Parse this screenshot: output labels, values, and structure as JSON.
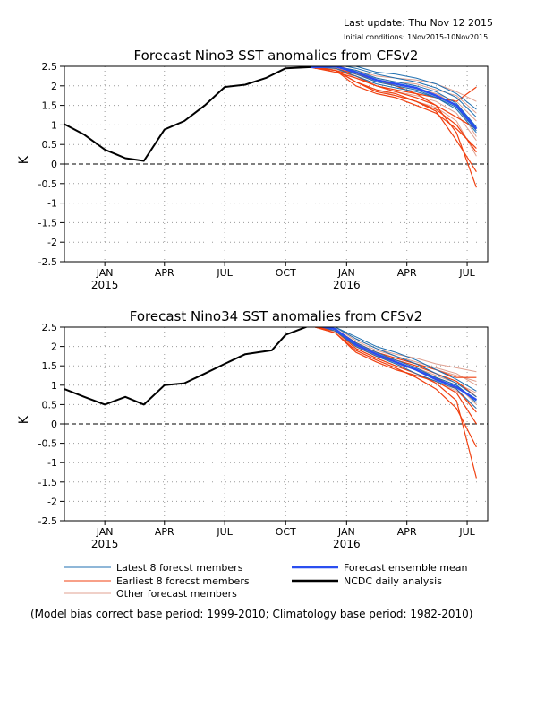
{
  "header": {
    "last_update": "Last update: Thu Nov 12 2015",
    "initial_conditions": "Initial conditions: 1Nov2015-10Nov2015"
  },
  "footnote": "(Model bias correct base period: 1999-2010; Climatology base period: 1982-2010)",
  "legend": {
    "latest": "Latest 8 forecst members",
    "earliest": "Earliest 8 forecst members",
    "other": "Other forecast members",
    "mean": "Forecast ensemble mean",
    "analysis": "NCDC daily analysis"
  },
  "colors": {
    "analysis": "#000000",
    "mean": "#2a4ef0",
    "latest": "#1f6fb0",
    "earliest": "#f04010",
    "other": "#e0a090",
    "zero_line": "#000000"
  },
  "chart_data": [
    {
      "type": "line",
      "title": "Forecast Nino3 SST anomalies from CFSv2",
      "ylabel": "K",
      "ylim": [
        -2.5,
        2.5
      ],
      "yticks": [
        "2.5",
        "2",
        "1.5",
        "1",
        "0.5",
        "0",
        "-0.5",
        "-1",
        "-1.5",
        "-2",
        "-2.5"
      ],
      "ytick_values": [
        2.5,
        2,
        1.5,
        1,
        0.5,
        0,
        -0.5,
        -1,
        -1.5,
        -2,
        -2.5
      ],
      "xlim": [
        "2014-11-01",
        "2016-08-01"
      ],
      "xticks": [
        {
          "date": "2015-01-01",
          "label": "JAN",
          "sub": "2015"
        },
        {
          "date": "2015-04-01",
          "label": "APR",
          "sub": ""
        },
        {
          "date": "2015-07-01",
          "label": "JUL",
          "sub": ""
        },
        {
          "date": "2015-10-01",
          "label": "OCT",
          "sub": ""
        },
        {
          "date": "2016-01-01",
          "label": "JAN",
          "sub": "2016"
        },
        {
          "date": "2016-04-01",
          "label": "APR",
          "sub": ""
        },
        {
          "date": "2016-07-01",
          "label": "JUL",
          "sub": ""
        }
      ],
      "grid": true,
      "analysis": {
        "x": [
          "2014-11-01",
          "2014-12-01",
          "2015-01-01",
          "2015-02-01",
          "2015-03-01",
          "2015-04-01",
          "2015-05-01",
          "2015-06-01",
          "2015-07-01",
          "2015-08-01",
          "2015-09-01",
          "2015-10-01",
          "2015-11-08"
        ],
        "y": [
          1.02,
          0.75,
          0.37,
          0.15,
          0.08,
          0.88,
          1.1,
          1.5,
          1.97,
          2.03,
          2.2,
          2.45,
          2.48
        ]
      },
      "forecast_x": [
        "2015-11-15",
        "2015-12-15",
        "2016-01-15",
        "2016-02-15",
        "2016-03-15",
        "2016-04-15",
        "2016-05-15",
        "2016-06-15",
        "2016-07-15"
      ],
      "mean": [
        2.48,
        2.5,
        2.35,
        2.15,
        2.05,
        1.95,
        1.75,
        1.5,
        0.9
      ],
      "latest": [
        [
          2.48,
          2.55,
          2.45,
          2.3,
          2.2,
          2.1,
          1.95,
          1.7,
          1.2
        ],
        [
          2.48,
          2.5,
          2.4,
          2.2,
          2.1,
          2.0,
          1.85,
          1.55,
          0.95
        ],
        [
          2.48,
          2.52,
          2.3,
          2.1,
          2.0,
          1.9,
          1.7,
          1.4,
          0.8
        ],
        [
          2.48,
          2.45,
          2.25,
          2.05,
          1.95,
          1.85,
          1.7,
          1.45,
          0.85
        ],
        [
          2.48,
          2.55,
          2.5,
          2.35,
          2.3,
          2.2,
          2.05,
          1.8,
          1.4
        ]
      ],
      "earliest": [
        [
          2.45,
          2.4,
          2.25,
          2.0,
          1.9,
          1.8,
          1.7,
          1.6,
          1.97
        ],
        [
          2.45,
          2.4,
          2.1,
          1.9,
          1.8,
          1.6,
          1.4,
          1.0,
          0.3
        ],
        [
          2.45,
          2.35,
          2.2,
          2.0,
          1.85,
          1.7,
          1.5,
          0.8,
          -0.6
        ],
        [
          2.45,
          2.4,
          2.0,
          1.8,
          1.7,
          1.5,
          1.3,
          0.9,
          0.4
        ],
        [
          2.45,
          2.45,
          2.3,
          2.15,
          2.0,
          1.8,
          1.5,
          1.2,
          0.9
        ],
        [
          2.45,
          2.4,
          2.1,
          1.85,
          1.75,
          1.6,
          1.35,
          0.6,
          -0.2
        ]
      ],
      "other": [
        [
          2.48,
          2.5,
          2.3,
          2.1,
          2.0,
          1.9,
          1.8,
          1.6,
          1.1
        ],
        [
          2.48,
          2.45,
          2.2,
          2.0,
          1.85,
          1.75,
          1.6,
          1.3,
          0.6
        ],
        [
          2.48,
          2.5,
          2.4,
          2.25,
          2.2,
          2.15,
          2.05,
          1.85,
          1.6
        ],
        [
          2.48,
          2.4,
          2.1,
          1.9,
          1.75,
          1.6,
          1.45,
          1.1,
          0.2
        ],
        [
          2.48,
          2.55,
          2.35,
          2.2,
          2.1,
          2.05,
          1.9,
          1.75,
          1.3
        ],
        [
          2.48,
          2.45,
          2.3,
          2.15,
          2.05,
          1.95,
          1.8,
          1.5,
          0.7
        ]
      ]
    },
    {
      "type": "line",
      "title": "Forecast Nino34 SST anomalies from CFSv2",
      "ylabel": "K",
      "ylim": [
        -2.5,
        2.5
      ],
      "yticks": [
        "2.5",
        "2",
        "1.5",
        "1",
        "0.5",
        "0",
        "-0.5",
        "-1",
        "-1.5",
        "-2",
        "-2.5"
      ],
      "ytick_values": [
        2.5,
        2,
        1.5,
        1,
        0.5,
        0,
        -0.5,
        -1,
        -1.5,
        -2,
        -2.5
      ],
      "xlim": [
        "2014-11-01",
        "2016-08-01"
      ],
      "xticks": [
        {
          "date": "2015-01-01",
          "label": "JAN",
          "sub": "2015"
        },
        {
          "date": "2015-04-01",
          "label": "APR",
          "sub": ""
        },
        {
          "date": "2015-07-01",
          "label": "JUL",
          "sub": ""
        },
        {
          "date": "2015-10-01",
          "label": "OCT",
          "sub": ""
        },
        {
          "date": "2016-01-01",
          "label": "JAN",
          "sub": "2016"
        },
        {
          "date": "2016-04-01",
          "label": "APR",
          "sub": ""
        },
        {
          "date": "2016-07-01",
          "label": "JUL",
          "sub": ""
        }
      ],
      "grid": true,
      "analysis": {
        "x": [
          "2014-11-01",
          "2014-12-01",
          "2015-01-01",
          "2015-02-01",
          "2015-03-01",
          "2015-04-01",
          "2015-05-01",
          "2015-06-01",
          "2015-07-01",
          "2015-08-01",
          "2015-08-20",
          "2015-09-10",
          "2015-10-01",
          "2015-11-08"
        ],
        "y": [
          0.9,
          0.7,
          0.5,
          0.7,
          0.5,
          1.0,
          1.05,
          1.3,
          1.55,
          1.8,
          1.85,
          1.9,
          2.3,
          2.55
        ]
      },
      "forecast_x": [
        "2015-11-15",
        "2015-12-15",
        "2016-01-15",
        "2016-02-15",
        "2016-03-15",
        "2016-04-15",
        "2016-05-15",
        "2016-06-15",
        "2016-07-15"
      ],
      "mean": [
        2.55,
        2.45,
        2.05,
        1.8,
        1.6,
        1.4,
        1.15,
        0.95,
        0.62
      ],
      "latest": [
        [
          2.55,
          2.5,
          2.2,
          1.95,
          1.75,
          1.55,
          1.3,
          1.05,
          0.7
        ],
        [
          2.55,
          2.45,
          2.1,
          1.85,
          1.65,
          1.45,
          1.2,
          1.0,
          0.55
        ],
        [
          2.55,
          2.4,
          2.0,
          1.75,
          1.55,
          1.3,
          1.1,
          0.9,
          0.4
        ],
        [
          2.55,
          2.5,
          2.25,
          2.0,
          1.85,
          1.65,
          1.4,
          1.15,
          0.85
        ],
        [
          2.55,
          2.45,
          2.05,
          1.8,
          1.6,
          1.4,
          1.2,
          1.0,
          0.6
        ]
      ],
      "earliest": [
        [
          2.5,
          2.4,
          1.95,
          1.7,
          1.5,
          1.3,
          1.05,
          0.6,
          -1.4
        ],
        [
          2.5,
          2.35,
          1.9,
          1.65,
          1.45,
          1.2,
          0.9,
          0.4,
          -0.6
        ],
        [
          2.5,
          2.45,
          2.1,
          1.85,
          1.7,
          1.55,
          1.4,
          1.2,
          1.2
        ],
        [
          2.5,
          2.4,
          2.0,
          1.75,
          1.6,
          1.4,
          1.2,
          0.9,
          0.3
        ],
        [
          2.5,
          2.35,
          1.85,
          1.6,
          1.4,
          1.25,
          1.1,
          0.8,
          0.0
        ],
        [
          2.5,
          2.45,
          2.05,
          1.8,
          1.65,
          1.5,
          1.3,
          1.1,
          0.7
        ]
      ],
      "other": [
        [
          2.55,
          2.5,
          2.15,
          1.9,
          1.75,
          1.6,
          1.45,
          1.3,
          1.0
        ],
        [
          2.55,
          2.4,
          1.95,
          1.7,
          1.5,
          1.3,
          1.1,
          0.85,
          0.4
        ],
        [
          2.55,
          2.45,
          2.1,
          1.85,
          1.7,
          1.55,
          1.4,
          1.25,
          1.1
        ],
        [
          2.55,
          2.5,
          2.2,
          1.95,
          1.8,
          1.7,
          1.55,
          1.45,
          1.35
        ],
        [
          2.55,
          2.4,
          2.0,
          1.75,
          1.55,
          1.4,
          1.2,
          1.0,
          0.5
        ],
        [
          2.55,
          2.45,
          2.05,
          1.8,
          1.65,
          1.45,
          1.25,
          1.05,
          0.8
        ]
      ]
    }
  ]
}
